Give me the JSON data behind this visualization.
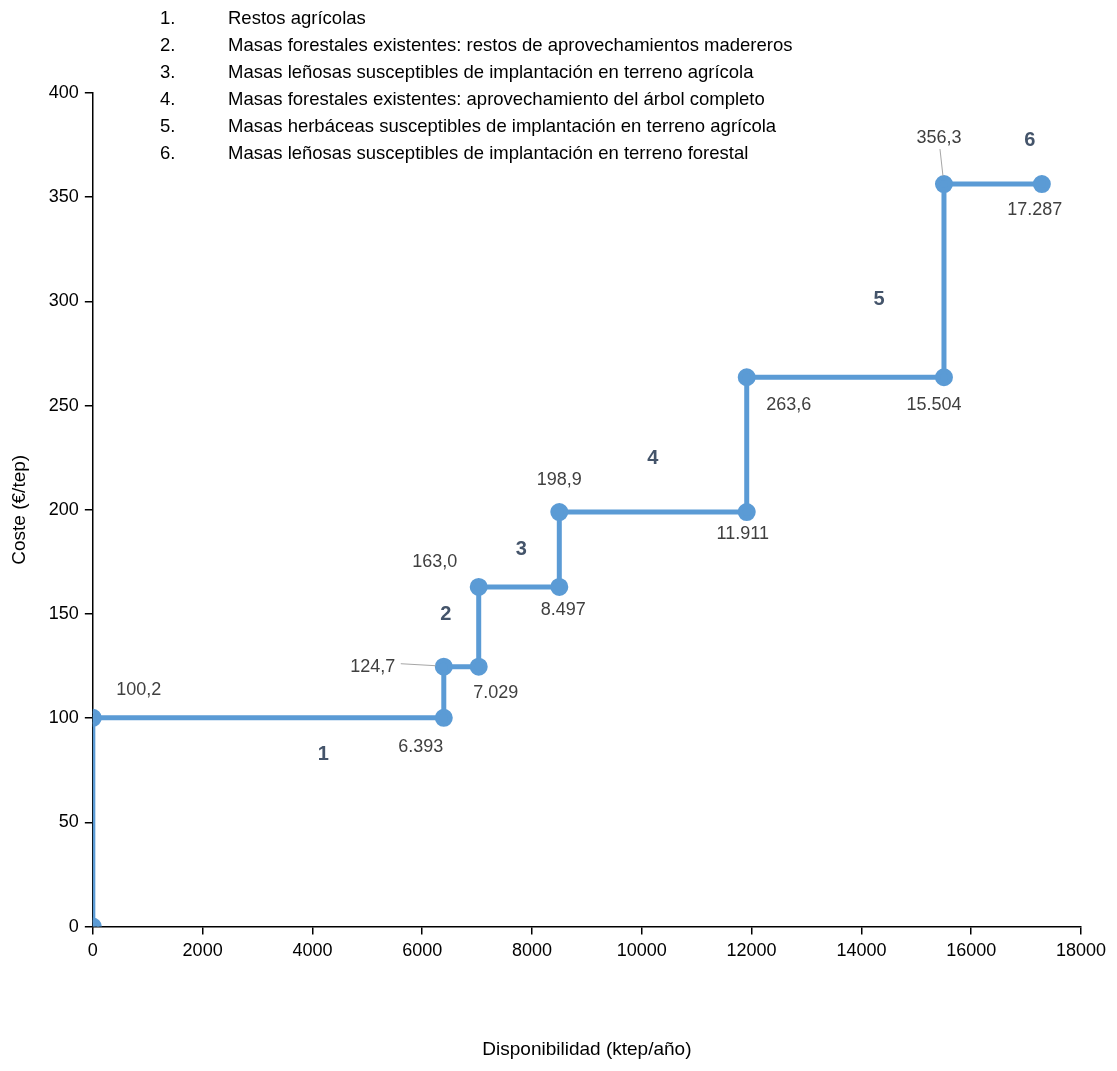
{
  "chart_data": {
    "type": "line",
    "xlabel": "Disponibilidad (ktep/año)",
    "ylabel": "Coste (€/tep)",
    "x": [
      0,
      0,
      6393,
      6393,
      7029,
      7029,
      8497,
      8497,
      11911,
      11911,
      15504,
      15504,
      17287
    ],
    "series": [
      {
        "color": "#5b9bd5",
        "values": [
          0,
          100.2,
          100.2,
          124.7,
          124.7,
          163.0,
          163.0,
          198.9,
          198.9,
          263.6,
          263.6,
          356.3,
          356.3
        ]
      }
    ],
    "xlim": [
      0,
      18000
    ],
    "xticks": [
      0,
      2000,
      4000,
      6000,
      8000,
      10000,
      12000,
      14000,
      16000,
      18000
    ],
    "ylim": [
      0,
      400
    ],
    "yticks": [
      0,
      50,
      100,
      150,
      200,
      250,
      300,
      350,
      400
    ],
    "grid": false,
    "legend": false,
    "marker": "circle",
    "line_style": "solid",
    "annotations": [
      "1. Restos agrícolas",
      "2. Masas forestales existentes: restos de aprovechamientos madereros",
      "3. Masas leñosas susceptibles de implantación en terreno agrícola",
      "4. Masas forestales existentes: aprovechamiento del árbol completo",
      "5. Masas herbáceas susceptibles de implantación en terreno agrícola",
      "6. Masas leñosas susceptibles de implantación en terreno forestal",
      {
        "text": "1",
        "x": 4200,
        "y": 100.2
      },
      {
        "text": "2",
        "x": 7029,
        "y": 150
      },
      {
        "text": "3",
        "x": 8497,
        "y": 181
      },
      {
        "text": "4",
        "x": 10200,
        "y": 198.9
      },
      {
        "text": "5",
        "x": 15504,
        "y": 301
      },
      {
        "text": "6",
        "x": 17287,
        "y": 356.3
      },
      {
        "text": "100,2",
        "x": 0,
        "y": 100.2
      },
      {
        "text": "6.393",
        "x": 6393,
        "y": 100.2
      },
      {
        "text": "124,7",
        "x": 6393,
        "y": 124.7
      },
      {
        "text": "7.029",
        "x": 7029,
        "y": 124.7
      },
      {
        "text": "163,0",
        "x": 7029,
        "y": 163.0
      },
      {
        "text": "8.497",
        "x": 8497,
        "y": 163.0
      },
      {
        "text": "198,9",
        "x": 8497,
        "y": 198.9
      },
      {
        "text": "11.911",
        "x": 11911,
        "y": 198.9
      },
      {
        "text": "263,6",
        "x": 11911,
        "y": 263.6
      },
      {
        "text": "15.504",
        "x": 15504,
        "y": 263.6
      },
      {
        "text": "356,3",
        "x": 15504,
        "y": 356.3
      },
      {
        "text": "17.287",
        "x": 17287,
        "y": 356.3
      }
    ]
  }
}
